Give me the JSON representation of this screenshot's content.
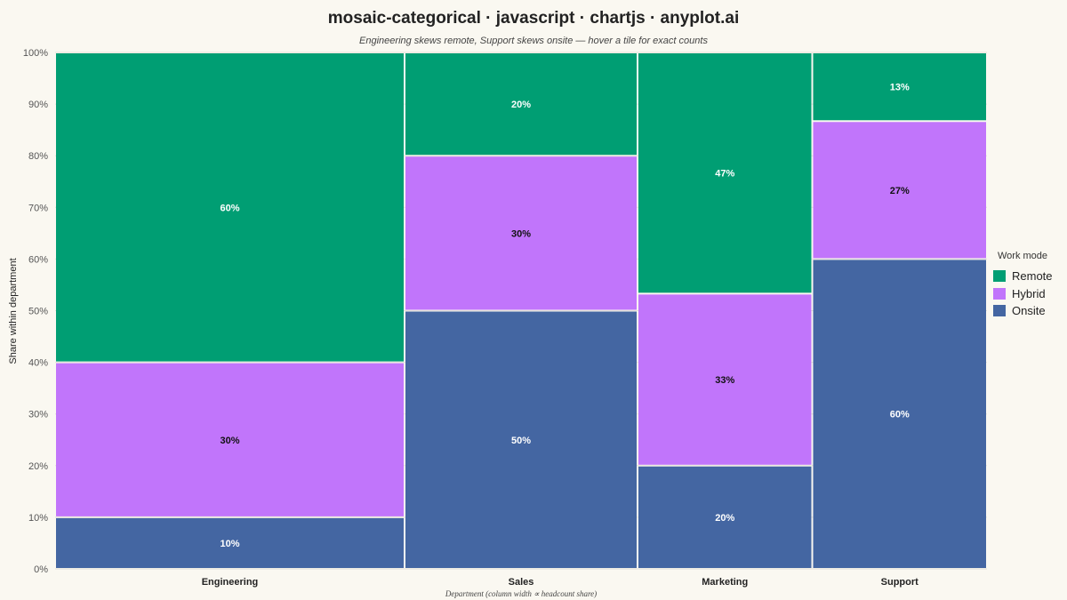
{
  "title": "mosaic-categorical · javascript · chartjs · anyplot.ai",
  "subtitle": "Engineering skews remote, Support skews onsite — hover a tile for exact counts",
  "chart_data": {
    "type": "mosaic",
    "xlabel": "Department (column width ∝ headcount share)",
    "ylabel": "Share within department",
    "ylim": [
      0,
      100
    ],
    "yticks": [
      "0%",
      "10%",
      "20%",
      "30%",
      "40%",
      "50%",
      "60%",
      "70%",
      "80%",
      "90%",
      "100%"
    ],
    "categories": [
      "Engineering",
      "Sales",
      "Marketing",
      "Support"
    ],
    "column_widths": [
      0.378,
      0.252,
      0.189,
      0.189
    ],
    "series": [
      {
        "name": "Onsite",
        "values": [
          10,
          50,
          20,
          60
        ],
        "labels": [
          "10%",
          "50%",
          "20%",
          "60%"
        ]
      },
      {
        "name": "Hybrid",
        "values": [
          30,
          30,
          33.3,
          26.7
        ],
        "labels": [
          "30%",
          "30%",
          "33%",
          "27%"
        ]
      },
      {
        "name": "Remote",
        "values": [
          60,
          20,
          46.7,
          13.3
        ],
        "labels": [
          "60%",
          "20%",
          "47%",
          "13%"
        ]
      }
    ],
    "legend_title": "Work mode",
    "legend": [
      "Remote",
      "Hybrid",
      "Onsite"
    ],
    "legend_position": "right",
    "colors": {
      "Remote": "#009E73",
      "Hybrid": "#C175FB",
      "Onsite": "#4466A2"
    },
    "label_colors": {
      "Remote": "#FFFFFF",
      "Hybrid": "#111111",
      "Onsite": "#FFFFFF"
    },
    "grid": true
  }
}
